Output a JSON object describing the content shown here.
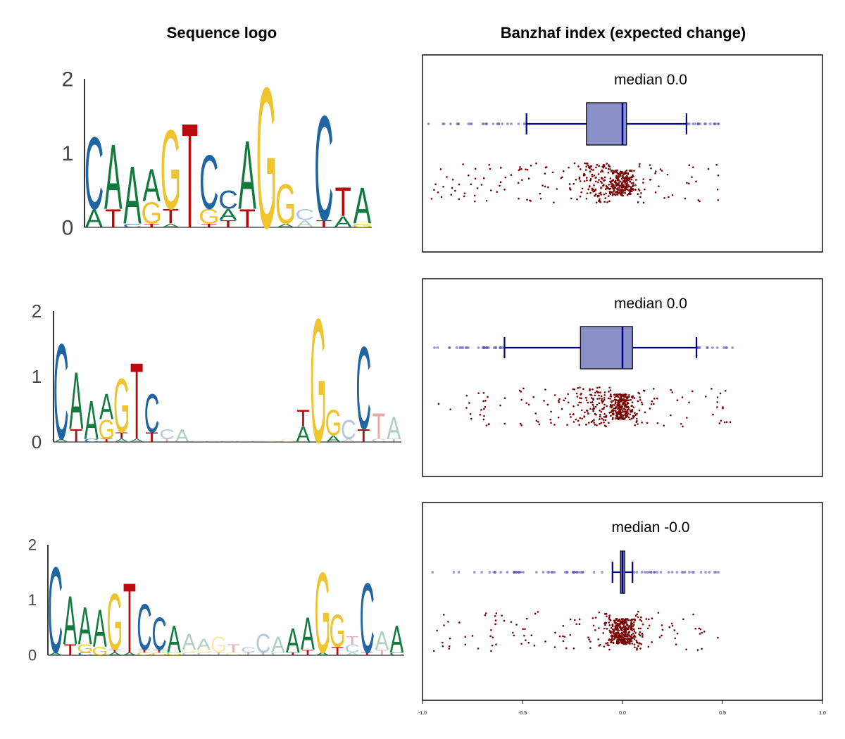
{
  "titles": {
    "left": "Sequence logo",
    "right": "Banzhaf index (expected change)"
  },
  "chart_data": [
    {
      "type": "sequence_logo",
      "ylim": [
        0,
        2
      ],
      "yticks": [
        "0",
        "1",
        "2"
      ],
      "positions": [
        {
          "A": 0.25,
          "C": 1.0,
          "G": 0.0,
          "T": 0.0
        },
        {
          "A": 0.9,
          "C": 0.0,
          "G": 0.0,
          "T": 0.25
        },
        {
          "A": 0.8,
          "C": 0.05,
          "G": 0.0,
          "T": 0.0
        },
        {
          "A": 0.45,
          "C": 0.0,
          "G": 0.3,
          "T": 0.05
        },
        {
          "A": 0.05,
          "C": 0.0,
          "G": 1.1,
          "T": 0.2
        },
        {
          "A": 0.0,
          "C": 0.0,
          "G": 0.0,
          "T": 1.45
        },
        {
          "A": 0.0,
          "C": 0.75,
          "G": 0.2,
          "T": 0.05
        },
        {
          "A": 0.15,
          "C": 0.25,
          "G": 0.0,
          "T": 0.1
        },
        {
          "A": 0.95,
          "C": 0.0,
          "G": 0.0,
          "T": 0.25
        },
        {
          "A": 0.0,
          "C": 0.0,
          "G": 1.95,
          "T": 0.0
        },
        {
          "A": 0.05,
          "C": 0.0,
          "G": 0.55,
          "T": 0.0
        },
        {
          "A": 0.1,
          "C": 0.15,
          "G": 0.0,
          "T": 0.0
        },
        {
          "A": 0.0,
          "C": 1.45,
          "G": 0.0,
          "T": 0.1
        },
        {
          "A": 0.15,
          "C": 0.0,
          "G": 0.0,
          "T": 0.4
        },
        {
          "A": 0.5,
          "C": 0.0,
          "G": 0.05,
          "T": 0.0
        }
      ],
      "box": {
        "median_label": "median 0.0",
        "whisker_low": -0.48,
        "q1": -0.18,
        "median": 0.0,
        "q3": 0.02,
        "whisker_high": 0.32,
        "outlier_range": [
          -0.97,
          0.48
        ]
      }
    },
    {
      "type": "sequence_logo",
      "ylim": [
        0,
        2
      ],
      "yticks": [
        "0",
        "1",
        "2"
      ],
      "positions": [
        {
          "A": 0.05,
          "C": 1.5,
          "G": 0.0,
          "T": 0.0
        },
        {
          "A": 0.9,
          "C": 0.0,
          "G": 0.0,
          "T": 0.2
        },
        {
          "A": 0.6,
          "C": 0.05,
          "G": 0.0,
          "T": 0.0
        },
        {
          "A": 0.4,
          "C": 0.0,
          "G": 0.3,
          "T": 0.05
        },
        {
          "A": 0.05,
          "C": 0.0,
          "G": 0.85,
          "T": 0.1
        },
        {
          "A": 0.05,
          "C": 0.0,
          "G": 0.0,
          "T": 1.2
        },
        {
          "A": 0.0,
          "C": 0.6,
          "G": 0.0,
          "T": 0.15
        },
        {
          "A": 0.0,
          "C": 0.15,
          "G": 0.0,
          "T": 0.05
        },
        {
          "A": 0.2,
          "C": 0.0,
          "G": 0.0,
          "T": 0.0
        },
        {
          "A": 0.0,
          "C": 0.02,
          "G": 0.0,
          "T": 0.0
        },
        {
          "A": 0.0,
          "C": 0.02,
          "G": 0.0,
          "T": 0.0
        },
        {
          "A": 0.0,
          "C": 0.02,
          "G": 0.0,
          "T": 0.0
        },
        {
          "A": 0.0,
          "C": 0.02,
          "G": 0.0,
          "T": 0.0
        },
        {
          "A": 0.0,
          "C": 0.02,
          "G": 0.0,
          "T": 0.0
        },
        {
          "A": 0.0,
          "C": 0.0,
          "G": 0.02,
          "T": 0.0
        },
        {
          "A": 0.0,
          "C": 0.0,
          "G": 0.05,
          "T": 0.0
        },
        {
          "A": 0.25,
          "C": 0.0,
          "G": 0.0,
          "T": 0.25
        },
        {
          "A": 0.0,
          "C": 0.0,
          "G": 1.95,
          "T": 0.0
        },
        {
          "A": 0.1,
          "C": 0.0,
          "G": 0.4,
          "T": 0.0
        },
        {
          "A": 0.05,
          "C": 0.3,
          "G": 0.0,
          "T": 0.0
        },
        {
          "A": 0.0,
          "C": 1.3,
          "G": 0.0,
          "T": 0.2
        },
        {
          "A": 0.0,
          "C": 0.05,
          "G": 0.0,
          "T": 0.4
        },
        {
          "A": 0.35,
          "C": 0.0,
          "G": 0.0,
          "T": 0.05
        }
      ],
      "box": {
        "median_label": "median 0.0",
        "whisker_low": -0.59,
        "q1": -0.21,
        "median": 0.0,
        "q3": 0.05,
        "whisker_high": 0.37,
        "outlier_range": [
          -0.94,
          0.55
        ]
      }
    },
    {
      "type": "sequence_logo",
      "ylim": [
        0,
        2
      ],
      "yticks": [
        "0",
        "1",
        "2"
      ],
      "positions": [
        {
          "A": 0.05,
          "C": 1.6,
          "G": 0.0,
          "T": 0.0
        },
        {
          "A": 0.9,
          "C": 0.0,
          "G": 0.0,
          "T": 0.2
        },
        {
          "A": 0.7,
          "C": 0.05,
          "G": 0.15,
          "T": 0.0
        },
        {
          "A": 0.7,
          "C": 0.0,
          "G": 0.15,
          "T": 0.0
        },
        {
          "A": 0.05,
          "C": 0.0,
          "G": 1.05,
          "T": 0.05
        },
        {
          "A": 0.05,
          "C": 0.0,
          "G": 0.0,
          "T": 1.3
        },
        {
          "A": 0.0,
          "C": 0.85,
          "G": 0.05,
          "T": 0.05
        },
        {
          "A": 0.0,
          "C": 0.6,
          "G": 0.05,
          "T": 0.05
        },
        {
          "A": 0.5,
          "C": 0.0,
          "G": 0.05,
          "T": 0.0
        },
        {
          "A": 0.3,
          "C": 0.05,
          "G": 0.05,
          "T": 0.0
        },
        {
          "A": 0.2,
          "C": 0.05,
          "G": 0.05,
          "T": 0.0
        },
        {
          "A": 0.0,
          "C": 0.0,
          "G": 0.3,
          "T": 0.05
        },
        {
          "A": 0.0,
          "C": 0.0,
          "G": 0.05,
          "T": 0.15
        },
        {
          "A": 0.0,
          "C": 0.1,
          "G": 0.0,
          "T": 0.05
        },
        {
          "A": 0.0,
          "C": 0.35,
          "G": 0.0,
          "T": 0.05
        },
        {
          "A": 0.3,
          "C": 0.05,
          "G": 0.0,
          "T": 0.0
        },
        {
          "A": 0.45,
          "C": 0.0,
          "G": 0.0,
          "T": 0.05
        },
        {
          "A": 0.6,
          "C": 0.0,
          "G": 0.0,
          "T": 0.1
        },
        {
          "A": 0.05,
          "C": 0.0,
          "G": 1.5,
          "T": 0.0
        },
        {
          "A": 0.0,
          "C": 0.0,
          "G": 0.6,
          "T": 0.15
        },
        {
          "A": 0.05,
          "C": 0.15,
          "G": 0.0,
          "T": 0.15
        },
        {
          "A": 0.0,
          "C": 1.3,
          "G": 0.0,
          "T": 0.05
        },
        {
          "A": 0.35,
          "C": 0.0,
          "G": 0.0,
          "T": 0.1
        },
        {
          "A": 0.5,
          "C": 0.05,
          "G": 0.0,
          "T": 0.0
        }
      ],
      "box": {
        "median_label": "median -0.0",
        "whisker_low": -0.05,
        "q1": -0.01,
        "median": 0.0,
        "q3": 0.01,
        "whisker_high": 0.05,
        "outlier_range": [
          -0.95,
          0.48
        ]
      }
    }
  ],
  "xaxis": {
    "xlim": [
      -1.0,
      1.0
    ],
    "ticks": [
      -1.0,
      -0.5,
      0.0,
      0.5,
      1.0
    ],
    "tick_labels": [
      "-1.0",
      "-0.5",
      "0.0",
      "0.5",
      "1.0"
    ]
  },
  "colors": {
    "A": "#137a3e",
    "C": "#1f64a3",
    "G": "#eec42f",
    "T": "#b80c0c",
    "box_fill": "#8c90c9",
    "box_line": "#00008b",
    "outlier": "#4a4aa8",
    "strip": "#7a0000"
  }
}
